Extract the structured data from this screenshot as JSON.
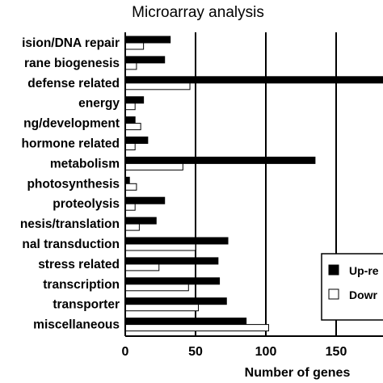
{
  "chart_data": {
    "type": "bar",
    "orientation": "horizontal",
    "title": "Microarray analysis",
    "xlabel": "Number of genes",
    "ylabel": "",
    "xlim": [
      0,
      200
    ],
    "xticks": [
      0,
      50,
      100,
      150
    ],
    "grid": "vertical lines at x ticks",
    "legend_position": "right",
    "categories": [
      "cell division/DNA repair",
      "membrane biogenesis",
      "defense related",
      "energy",
      "flowering/development",
      "hormone related",
      "metabolism",
      "photosynthesis",
      "proteolysis",
      "protein synthesis/translation",
      "signal transduction",
      "stress related",
      "transcription",
      "transporter",
      "miscellaneous"
    ],
    "category_labels": [
      "ision/DNA repair",
      "rane biogenesis",
      "defense related",
      "energy",
      "ng/development",
      "hormone related",
      "metabolism",
      "photosynthesis",
      "proteolysis",
      "nesis/translation",
      "nal transduction",
      "stress related",
      "transcription",
      "transporter",
      "miscellaneous"
    ],
    "series": [
      {
        "name": "Up-re",
        "color": "#000000",
        "values": [
          32,
          28,
          200,
          13,
          7,
          16,
          135,
          3,
          28,
          22,
          73,
          66,
          67,
          72,
          86
        ]
      },
      {
        "name": "Dowr",
        "color": "#ffffff",
        "values": [
          13,
          8,
          46,
          7,
          11,
          7,
          41,
          8,
          7,
          10,
          50,
          24,
          45,
          52,
          102
        ]
      }
    ]
  }
}
